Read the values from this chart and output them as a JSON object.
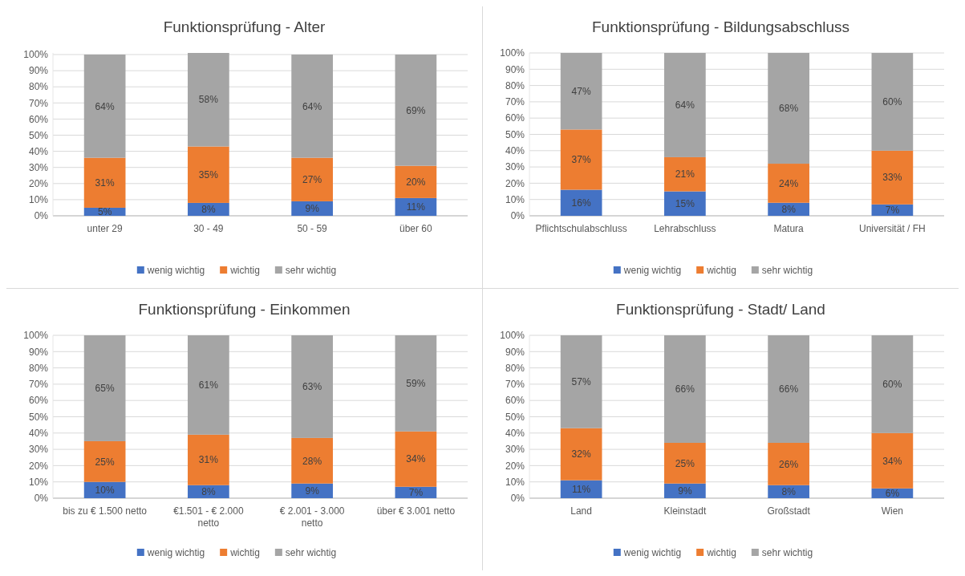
{
  "chart_data": [
    {
      "type": "bar",
      "title": "Funktionsprüfung - Alter",
      "categories": [
        "unter 29",
        "30 - 49",
        "50 - 59",
        "über 60"
      ],
      "stacked": true,
      "grid": "y",
      "legend": "bottom",
      "ylim": [
        0,
        101
      ],
      "yticks": [
        {
          "value": 0,
          "label": "0%"
        },
        {
          "value": 10,
          "label": "10%"
        },
        {
          "value": 20,
          "label": "20%"
        },
        {
          "value": 30,
          "label": "30%"
        },
        {
          "value": 40,
          "label": "40%"
        },
        {
          "value": 50,
          "label": "50%"
        },
        {
          "value": 60,
          "label": "60%"
        },
        {
          "value": 70,
          "label": "70%"
        },
        {
          "value": 80,
          "label": "80%"
        },
        {
          "value": 90,
          "label": "90%"
        },
        {
          "value": 100,
          "label": "100%"
        }
      ],
      "series": [
        {
          "name": "wenig wichtig",
          "color": "#4472c4",
          "values": [
            5,
            8,
            9,
            11
          ],
          "value_labels": [
            "5%",
            "8%",
            "9%",
            "11%"
          ]
        },
        {
          "name": "wichtig",
          "color": "#ed7d31",
          "values": [
            31,
            35,
            27,
            20
          ],
          "value_labels": [
            "31%",
            "35%",
            "27%",
            "20%"
          ]
        },
        {
          "name": "sehr wichtig",
          "color": "#a5a5a5",
          "values": [
            64,
            58,
            64,
            69
          ],
          "value_labels": [
            "64%",
            "58%",
            "64%",
            "69%"
          ]
        }
      ]
    },
    {
      "type": "bar",
      "title": "Funktionsprüfung - Bildungsabschluss",
      "categories": [
        "Pflichtschulabschluss",
        "Lehrabschluss",
        "Matura",
        "Universität / FH"
      ],
      "stacked": true,
      "grid": "y",
      "legend": "bottom",
      "ylim": [
        0,
        100
      ],
      "yticks": [
        {
          "value": 0,
          "label": "0%"
        },
        {
          "value": 10,
          "label": "10%"
        },
        {
          "value": 20,
          "label": "20%"
        },
        {
          "value": 30,
          "label": "30%"
        },
        {
          "value": 40,
          "label": "40%"
        },
        {
          "value": 50,
          "label": "50%"
        },
        {
          "value": 60,
          "label": "60%"
        },
        {
          "value": 70,
          "label": "70%"
        },
        {
          "value": 80,
          "label": "80%"
        },
        {
          "value": 90,
          "label": "90%"
        },
        {
          "value": 100,
          "label": "100%"
        }
      ],
      "series": [
        {
          "name": "wenig wichtig",
          "color": "#4472c4",
          "values": [
            16,
            15,
            8,
            7
          ],
          "value_labels": [
            "16%",
            "15%",
            "8%",
            "7%"
          ]
        },
        {
          "name": "wichtig",
          "color": "#ed7d31",
          "values": [
            37,
            21,
            24,
            33
          ],
          "value_labels": [
            "37%",
            "21%",
            "24%",
            "33%"
          ]
        },
        {
          "name": "sehr wichtig",
          "color": "#a5a5a5",
          "values": [
            47,
            64,
            68,
            60
          ],
          "value_labels": [
            "47%",
            "64%",
            "68%",
            "60%"
          ]
        }
      ]
    },
    {
      "type": "bar",
      "title": "Funktionsprüfung - Einkommen",
      "categories": [
        "bis zu € 1.500 netto",
        "€1.501 - € 2.000 netto",
        "€ 2.001 - 3.000 netto",
        "über € 3.001 netto"
      ],
      "stacked": true,
      "grid": "y",
      "legend": "bottom",
      "ylim": [
        0,
        100
      ],
      "yticks": [
        {
          "value": 0,
          "label": "0%"
        },
        {
          "value": 10,
          "label": "10%"
        },
        {
          "value": 20,
          "label": "20%"
        },
        {
          "value": 30,
          "label": "30%"
        },
        {
          "value": 40,
          "label": "40%"
        },
        {
          "value": 50,
          "label": "50%"
        },
        {
          "value": 60,
          "label": "60%"
        },
        {
          "value": 70,
          "label": "70%"
        },
        {
          "value": 80,
          "label": "80%"
        },
        {
          "value": 90,
          "label": "90%"
        },
        {
          "value": 100,
          "label": "100%"
        }
      ],
      "series": [
        {
          "name": "wenig wichtig",
          "color": "#4472c4",
          "values": [
            10,
            8,
            9,
            7
          ],
          "value_labels": [
            "10%",
            "8%",
            "9%",
            "7%"
          ]
        },
        {
          "name": "wichtig",
          "color": "#ed7d31",
          "values": [
            25,
            31,
            28,
            34
          ],
          "value_labels": [
            "25%",
            "31%",
            "28%",
            "34%"
          ]
        },
        {
          "name": "sehr wichtig",
          "color": "#a5a5a5",
          "values": [
            65,
            61,
            63,
            59
          ],
          "value_labels": [
            "65%",
            "61%",
            "63%",
            "59%"
          ]
        }
      ]
    },
    {
      "type": "bar",
      "title": "Funktionsprüfung - Stadt/ Land",
      "categories": [
        "Land",
        "Kleinstadt",
        "Großstadt",
        "Wien"
      ],
      "stacked": true,
      "grid": "y",
      "legend": "bottom",
      "ylim": [
        0,
        100
      ],
      "yticks": [
        {
          "value": 0,
          "label": "0%"
        },
        {
          "value": 10,
          "label": "10%"
        },
        {
          "value": 20,
          "label": "20%"
        },
        {
          "value": 30,
          "label": "30%"
        },
        {
          "value": 40,
          "label": "40%"
        },
        {
          "value": 50,
          "label": "50%"
        },
        {
          "value": 60,
          "label": "60%"
        },
        {
          "value": 70,
          "label": "70%"
        },
        {
          "value": 80,
          "label": "80%"
        },
        {
          "value": 90,
          "label": "90%"
        },
        {
          "value": 100,
          "label": "100%"
        }
      ],
      "series": [
        {
          "name": "wenig wichtig",
          "color": "#4472c4",
          "values": [
            11,
            9,
            8,
            6
          ],
          "value_labels": [
            "11%",
            "9%",
            "8%",
            "6%"
          ]
        },
        {
          "name": "wichtig",
          "color": "#ed7d31",
          "values": [
            32,
            25,
            26,
            34
          ],
          "value_labels": [
            "32%",
            "25%",
            "26%",
            "34%"
          ]
        },
        {
          "name": "sehr wichtig",
          "color": "#a5a5a5",
          "values": [
            57,
            66,
            66,
            60
          ],
          "value_labels": [
            "57%",
            "66%",
            "66%",
            "60%"
          ]
        }
      ]
    }
  ]
}
